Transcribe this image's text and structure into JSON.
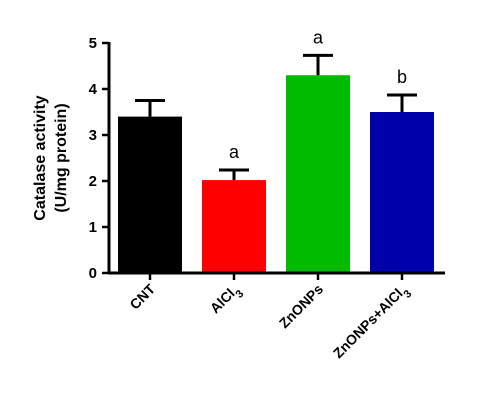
{
  "chart_data": {
    "type": "bar",
    "ylabel": "Catalase activity",
    "ylabel_unit": "(U/mg protein)",
    "ylim": [
      0,
      5
    ],
    "yticks": [
      "0",
      "1",
      "2",
      "3",
      "4",
      "5"
    ],
    "categories": [
      "CNT",
      "AlCl3",
      "ZnONPs",
      "ZnONPs+AlCl3"
    ],
    "values": [
      3.4,
      2.02,
      4.3,
      3.5
    ],
    "errors": [
      0.35,
      0.22,
      0.43,
      0.37
    ],
    "significance": [
      "",
      "a",
      "a",
      "b"
    ],
    "colors": [
      "#000000",
      "#ff0000",
      "#00bb00",
      "#0000aa"
    ],
    "grid": false,
    "legend": "none"
  }
}
